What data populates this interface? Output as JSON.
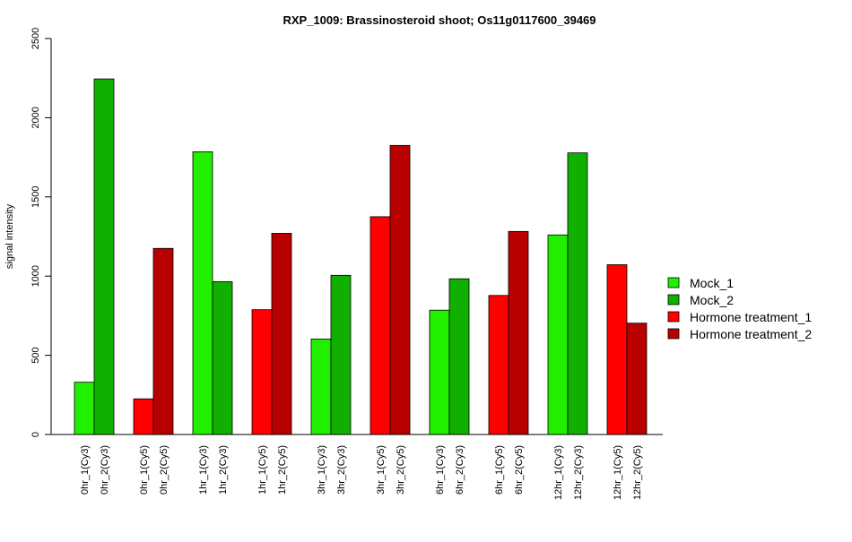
{
  "chart_data": {
    "type": "bar",
    "title": "RXP_1009: Brassinosteroid shoot; Os11g0117600_39469",
    "xlabel": "",
    "ylabel": "signal intensity",
    "ylim": [
      0,
      2500
    ],
    "yticks": [
      "0",
      "500",
      "1000",
      "1500",
      "2000",
      "2500"
    ],
    "ytick_values": [
      0,
      500,
      1000,
      1500,
      2000,
      2500
    ],
    "grid": false,
    "legend_position": "right",
    "legend": [
      {
        "name": "Mock_1",
        "color": "#22ee00"
      },
      {
        "name": "Mock_2",
        "color": "#11b000"
      },
      {
        "name": "Hormone treatment_1",
        "color": "#ff0000"
      },
      {
        "name": "Hormone treatment_2",
        "color": "#b80000"
      }
    ],
    "groups": [
      {
        "bars": [
          {
            "label": "0hr_1(Cy3)",
            "value": 330,
            "series": 0
          },
          {
            "label": "0hr_2(Cy3)",
            "value": 2245,
            "series": 1
          }
        ]
      },
      {
        "bars": [
          {
            "label": "0hr_1(Cy5)",
            "value": 225,
            "series": 2
          },
          {
            "label": "0hr_2(Cy5)",
            "value": 1175,
            "series": 3
          }
        ]
      },
      {
        "bars": [
          {
            "label": "1hr_1(Cy3)",
            "value": 1785,
            "series": 0
          },
          {
            "label": "1hr_2(Cy3)",
            "value": 965,
            "series": 1
          }
        ]
      },
      {
        "bars": [
          {
            "label": "1hr_1(Cy5)",
            "value": 788,
            "series": 2
          },
          {
            "label": "1hr_2(Cy5)",
            "value": 1270,
            "series": 3
          }
        ]
      },
      {
        "bars": [
          {
            "label": "3hr_1(Cy3)",
            "value": 603,
            "series": 0
          },
          {
            "label": "3hr_2(Cy3)",
            "value": 1005,
            "series": 1
          }
        ]
      },
      {
        "bars": [
          {
            "label": "3hr_1(Cy5)",
            "value": 1375,
            "series": 2
          },
          {
            "label": "3hr_2(Cy5)",
            "value": 1825,
            "series": 3
          }
        ]
      },
      {
        "bars": [
          {
            "label": "6hr_1(Cy3)",
            "value": 785,
            "series": 0
          },
          {
            "label": "6hr_2(Cy3)",
            "value": 983,
            "series": 1
          }
        ]
      },
      {
        "bars": [
          {
            "label": "6hr_1(Cy5)",
            "value": 878,
            "series": 2
          },
          {
            "label": "6hr_2(Cy5)",
            "value": 1282,
            "series": 3
          }
        ]
      },
      {
        "bars": [
          {
            "label": "12hr_1(Cy3)",
            "value": 1260,
            "series": 0
          },
          {
            "label": "12hr_2(Cy3)",
            "value": 1778,
            "series": 1
          }
        ]
      },
      {
        "bars": [
          {
            "label": "12hr_1(Cy5)",
            "value": 1072,
            "series": 2
          },
          {
            "label": "12hr_2(Cy5)",
            "value": 703,
            "series": 3
          }
        ]
      }
    ]
  }
}
